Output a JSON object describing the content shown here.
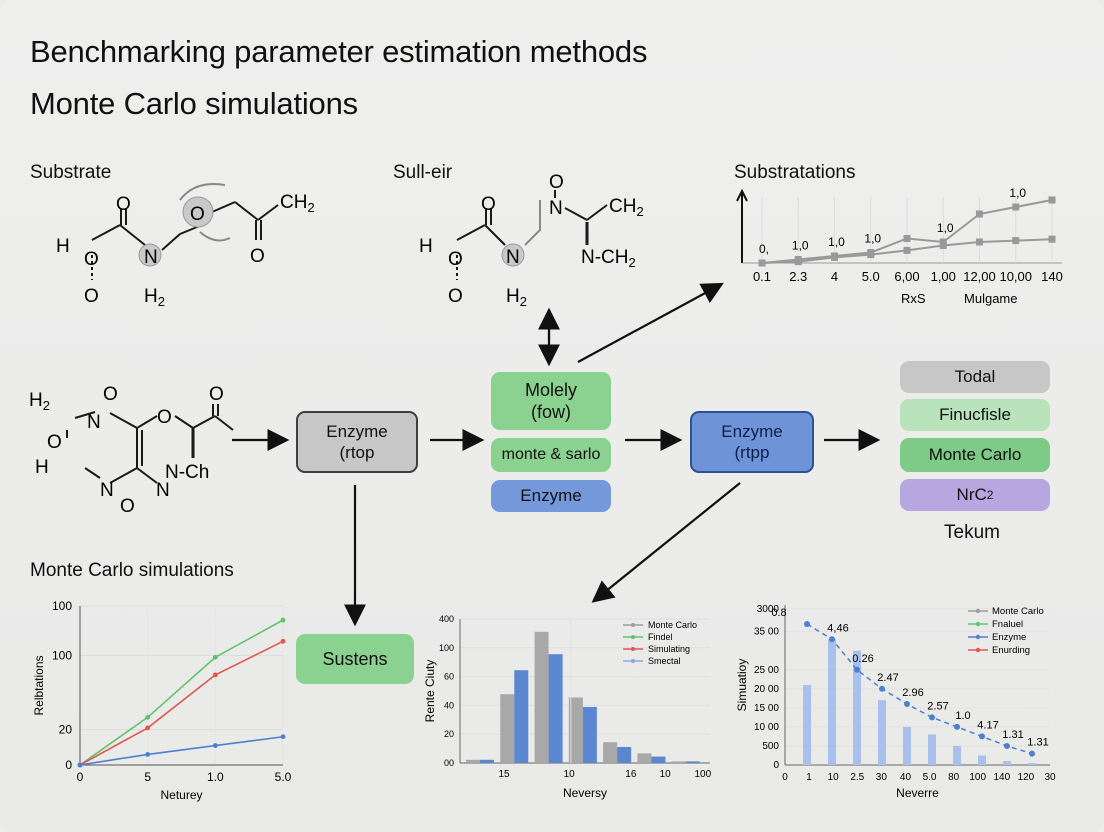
{
  "title_line1": "Benchmarking parameter estimation methods",
  "title_line2": "Monte Carlo simulations",
  "labels": {
    "substrate": "Substrate",
    "sull_eir": "Sull-eir",
    "substratations": "Substratations",
    "mc_sims": "Monte Carlo simulations",
    "tekum": "Tekum"
  },
  "molecules": {
    "m1": {
      "o_top": "O",
      "h_o": "H",
      "o_mid": "O",
      "n": "N",
      "o_bot": "O",
      "h2": "H",
      "h2_sub": "2",
      "o_ring": "O",
      "ch2": "CH",
      "ch2_sub": "2",
      "o_right": "O"
    },
    "m2": {
      "o_top": "O",
      "h_o": "H",
      "o_mid": "O",
      "n": "N",
      "o_bot": "O",
      "h2": "H",
      "h2_sub": "2",
      "n_top": "N",
      "ch2a": "CH",
      "ch2a_sub": "2",
      "o_n": "O",
      "n_ch2": "N-CH",
      "n_ch2_sub": "2"
    },
    "m3": {
      "h2": "H",
      "h2_sub": "2",
      "n_o": "N",
      "o1": "O",
      "o_left": "O",
      "o_ring": "O",
      "o_ketone": "O",
      "h": "H",
      "n_left": "N",
      "n_mid": "N",
      "nch": "N-Ch",
      "n_bot": "N",
      "o_bot": "O"
    }
  },
  "flow": {
    "enzyme1": "Enzyme\n(rtop",
    "moley": "Molely\n(fow)",
    "monte_sarlo": "monte & sarlo",
    "enzyme_green": "Enzyme",
    "enzyme2": "Enzyme\n(rtpp",
    "sustens": "Sustens"
  },
  "stack": [
    "Todal",
    "Finucfisle",
    "Monte Carlo"
  ],
  "stack_last": {
    "text": "NrC",
    "sub": "2"
  },
  "chart_data": [
    {
      "type": "line",
      "title": "Substratations",
      "x": [
        "0.1",
        "2.3",
        "4",
        "5.0",
        "6,00",
        "1,00",
        "12,00",
        "10,00",
        "140"
      ],
      "xlabel_left": "RxS",
      "xlabel_right": "Mulgame",
      "series": [
        {
          "values": [
            0.0,
            0.05,
            0.1,
            0.15,
            0.35,
            0.3,
            0.7,
            0.8,
            0.9
          ]
        },
        {
          "values": [
            0.0,
            0.02,
            0.08,
            0.12,
            0.18,
            0.25,
            0.3,
            0.32,
            0.34
          ]
        }
      ],
      "data_labels": [
        "0,",
        "1,0",
        "1,0",
        "1,0",
        "1,0",
        "1,0"
      ]
    },
    {
      "type": "line",
      "x_ticks": [
        "0",
        "5",
        "1.0",
        "5.0"
      ],
      "y_ticks": [
        "0",
        "20",
        "100",
        "100"
      ],
      "xlabel": "Neturey",
      "ylabel": "Relbtations",
      "series": [
        {
          "color": "#5fc46b",
          "values": [
            0,
            27,
            61,
            82
          ]
        },
        {
          "color": "#e0584e",
          "values": [
            0,
            21,
            51,
            70
          ]
        },
        {
          "color": "#4d80d0",
          "values": [
            0,
            6,
            11,
            16
          ]
        }
      ]
    },
    {
      "type": "bar",
      "x_ticks": [
        "15",
        "10",
        "16",
        "10",
        "100"
      ],
      "y_ticks": [
        "00",
        "20",
        "40",
        "60",
        "100",
        "400"
      ],
      "xlabel": "Neversy",
      "ylabel": "Rente Ciuty",
      "legend": [
        "Monte Carlo",
        "Findel",
        "Simulating",
        "Smectal"
      ],
      "legend_colors": [
        "#9e9e9e",
        "#5fc46b",
        "#e0584e",
        "#8aa7e0"
      ],
      "series": [
        {
          "color": "#a8a8a8",
          "values": [
            2,
            43,
            82,
            41,
            13,
            6,
            1
          ]
        },
        {
          "color": "#5b86d2",
          "values": [
            2,
            58,
            68,
            35,
            10,
            4,
            1
          ]
        }
      ]
    },
    {
      "type": "bar",
      "x_ticks": [
        "0",
        "1",
        "10",
        "2.5",
        "30",
        "40",
        "5.0",
        "80",
        "100",
        "140",
        "120",
        "30"
      ],
      "y_ticks": [
        "0",
        "500",
        "10 00",
        "15 00",
        "20 00",
        "25 00",
        "35 00",
        "3000"
      ],
      "xlabel": "Neverre",
      "ylabel": "Simuatioy",
      "legend": [
        "Monte Carlo",
        "Fnaluel",
        "Enzyme",
        "Enurding"
      ],
      "legend_colors": [
        "#9e9e9e",
        "#5fc46b",
        "#4d80d0",
        "#e0584e"
      ],
      "bar_values": [
        2100,
        3300,
        3000,
        1700,
        1000,
        800,
        500,
        250,
        100,
        50
      ],
      "line_values": [
        3700,
        3300,
        2500,
        2000,
        1600,
        1250,
        1000,
        750,
        500,
        300
      ],
      "point_labels": [
        "0.8",
        "4,46",
        "0.26",
        "2.47",
        "2.96",
        "2.57",
        "1.0",
        "4.17",
        "1.31",
        "1.31"
      ]
    }
  ]
}
